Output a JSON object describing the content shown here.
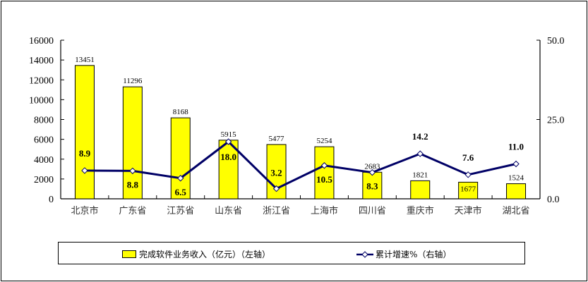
{
  "chart_data": {
    "type": "bar+line",
    "title": "",
    "categories": [
      "北京市",
      "广东省",
      "江苏省",
      "山东省",
      "浙江省",
      "上海市",
      "四川省",
      "重庆市",
      "天津市",
      "湖北省"
    ],
    "series": [
      {
        "name": "完成软件业务收入（亿元）（左轴）",
        "type": "bar",
        "axis": "left",
        "color": "#ffff00",
        "values": [
          13451,
          11296,
          8168,
          5915,
          5477,
          5254,
          2683,
          1821,
          1677,
          1524
        ]
      },
      {
        "name": "累计增速%（右轴）",
        "type": "line",
        "axis": "right",
        "color": "#000066",
        "values": [
          8.9,
          8.8,
          6.5,
          18.0,
          3.2,
          10.5,
          8.3,
          14.2,
          7.6,
          11.0
        ]
      }
    ],
    "left_axis": {
      "ylim": [
        0,
        16000
      ],
      "ticks": [
        "0",
        "2000",
        "4000",
        "6000",
        "8000",
        "10000",
        "12000",
        "14000",
        "16000"
      ]
    },
    "right_axis": {
      "ylim": [
        0,
        50
      ],
      "ticks": [
        "0.0",
        "25.0",
        "50.0"
      ]
    },
    "grid": false,
    "legend_position": "bottom"
  },
  "legend": {
    "bar_label": "完成软件业务收入（亿元）（左轴）",
    "line_label": "累计增速%（右轴）"
  }
}
